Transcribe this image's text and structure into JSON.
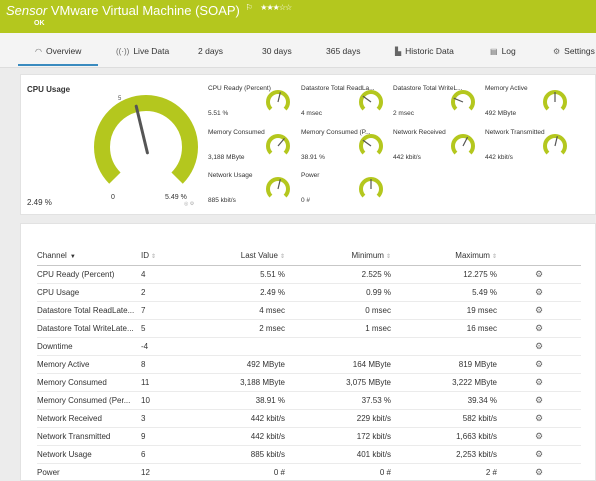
{
  "header": {
    "kind": "Sensor",
    "name": "VMware Virtual Machine (SOAP)",
    "flag": "⚐",
    "stars": "★★★☆☆",
    "status": "OK"
  },
  "tabs": [
    {
      "label": "Overview",
      "icon": "◠"
    },
    {
      "label": "Live Data",
      "icon": "((·))"
    },
    {
      "label": "2  days",
      "icon": ""
    },
    {
      "label": "30  days",
      "icon": ""
    },
    {
      "label": "365  days",
      "icon": ""
    },
    {
      "label": "Historic Data",
      "icon": "▙"
    },
    {
      "label": "Log",
      "icon": "▤"
    },
    {
      "label": "Settings",
      "icon": "⚙"
    }
  ],
  "icons": {
    "overview": "gauge-icon",
    "live": "live-data-icon",
    "historic": "historic-data-icon",
    "log": "log-icon",
    "settings": "gear-icon",
    "row": "settings-icon"
  },
  "colors": {
    "brand": "#b4c71e",
    "needle": "#555555",
    "accent": "#3a8bbf"
  },
  "cpu": {
    "title": "CPU Usage",
    "value": "2.49 %",
    "min_label": "0",
    "max_label": "5.49 %",
    "fraction": 0.45,
    "tick_label": "5"
  },
  "gauges": [
    {
      "label": "CPU Ready (Percent)",
      "value": "5.51 %",
      "fraction": 0.55
    },
    {
      "label": "Datastore Total ReadLa...",
      "value": "4 msec",
      "fraction": 0.3
    },
    {
      "label": "Datastore Total WriteL...",
      "value": "2 msec",
      "fraction": 0.25
    },
    {
      "label": "Memory Active",
      "value": "492 MByte",
      "fraction": 0.5
    },
    {
      "label": "Memory Consumed",
      "value": "3,188 MByte",
      "fraction": 0.65
    },
    {
      "label": "Memory Consumed (P...",
      "value": "38.91 %",
      "fraction": 0.3
    },
    {
      "label": "Network Received",
      "value": "442 kbit/s",
      "fraction": 0.6
    },
    {
      "label": "Network Transmitted",
      "value": "442 kbit/s",
      "fraction": 0.55
    },
    {
      "label": "Network Usage",
      "value": "885 kbit/s",
      "fraction": 0.55
    },
    {
      "label": "Power",
      "value": "0 #",
      "fraction": 0.5
    }
  ],
  "table": {
    "headers": {
      "channel": "Channel",
      "id": "ID",
      "last": "Last Value",
      "min": "Minimum",
      "max": "Maximum"
    },
    "rows": [
      {
        "channel": "CPU Ready (Percent)",
        "id": "4",
        "last": "5.51 %",
        "min": "2.525 %",
        "max": "12.275 %"
      },
      {
        "channel": "CPU Usage",
        "id": "2",
        "last": "2.49 %",
        "min": "0.99 %",
        "max": "5.49 %"
      },
      {
        "channel": "Datastore Total ReadLate...",
        "id": "7",
        "last": "4 msec",
        "min": "0 msec",
        "max": "19 msec"
      },
      {
        "channel": "Datastore Total WriteLate...",
        "id": "5",
        "last": "2 msec",
        "min": "1 msec",
        "max": "16 msec"
      },
      {
        "channel": "Downtime",
        "id": "-4",
        "last": "",
        "min": "",
        "max": ""
      },
      {
        "channel": "Memory Active",
        "id": "8",
        "last": "492 MByte",
        "min": "164 MByte",
        "max": "819 MByte"
      },
      {
        "channel": "Memory Consumed",
        "id": "11",
        "last": "3,188 MByte",
        "min": "3,075 MByte",
        "max": "3,222 MByte"
      },
      {
        "channel": "Memory Consumed (Per...",
        "id": "10",
        "last": "38.91 %",
        "min": "37.53 %",
        "max": "39.34 %"
      },
      {
        "channel": "Network Received",
        "id": "3",
        "last": "442 kbit/s",
        "min": "229 kbit/s",
        "max": "582 kbit/s"
      },
      {
        "channel": "Network Transmitted",
        "id": "9",
        "last": "442 kbit/s",
        "min": "172 kbit/s",
        "max": "1,663 kbit/s"
      },
      {
        "channel": "Network Usage",
        "id": "6",
        "last": "885 kbit/s",
        "min": "401 kbit/s",
        "max": "2,253 kbit/s"
      },
      {
        "channel": "Power",
        "id": "12",
        "last": "0 #",
        "min": "0 #",
        "max": "2 #"
      }
    ]
  }
}
